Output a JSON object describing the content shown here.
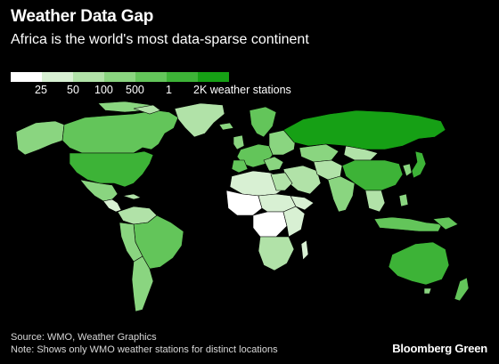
{
  "header": {
    "title": "Weather Data Gap",
    "subtitle": "Africa is the world's most data-sparse continent"
  },
  "legend": {
    "colors": [
      "#ffffff",
      "#d8f0d3",
      "#b1e2a8",
      "#8ad580",
      "#63c55a",
      "#3db337",
      "#16a015"
    ],
    "labels": [
      "25",
      "50",
      "100",
      "500",
      "1",
      "2K weather stations"
    ]
  },
  "map": {
    "land_colors": {
      "none": "#ffffff",
      "low": "#d8f0d3",
      "mid_low": "#b1e2a8",
      "mid": "#8ad580",
      "mid_high": "#63c55a",
      "high": "#3db337",
      "highest": "#16a015"
    }
  },
  "footer": {
    "source": "Source: WMO, Weather Graphics",
    "note": "Note: Shows only WMO weather stations for distinct locations",
    "brand": "Bloomberg Green"
  }
}
